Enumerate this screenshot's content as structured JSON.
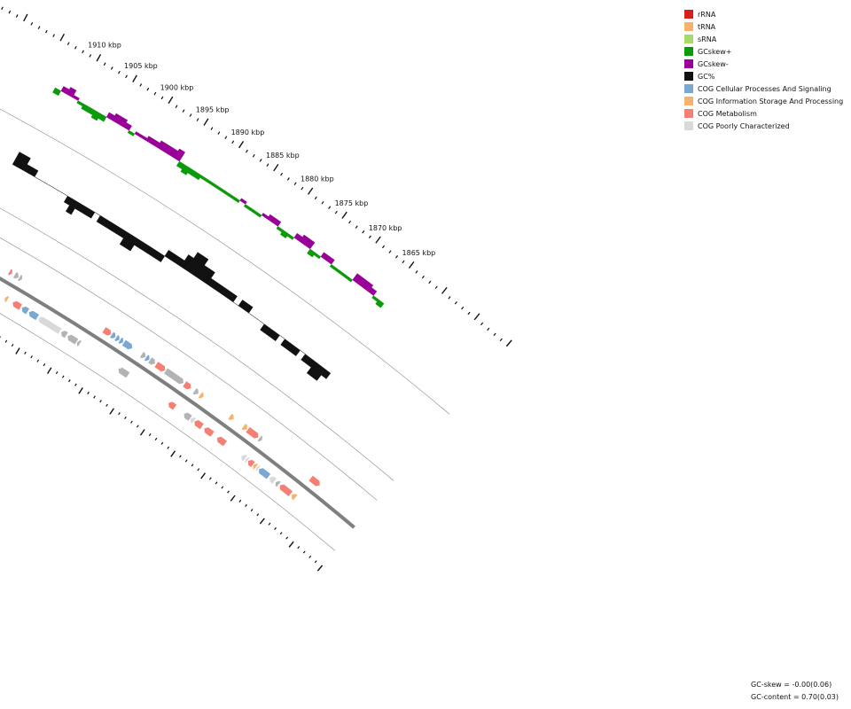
{
  "legend": [
    {
      "label": "rRNA",
      "color": "#d61f1f"
    },
    {
      "label": "tRNA",
      "color": "#f6b26b"
    },
    {
      "label": "sRNA",
      "color": "#a6d96a"
    },
    {
      "label": "GCskew+",
      "color": "#0b9a0b"
    },
    {
      "label": "GCskew-",
      "color": "#990099"
    },
    {
      "label": "GC%",
      "color": "#111111"
    },
    {
      "label": "COG Cellular Processes And Signaling",
      "color": "#7aa8d2"
    },
    {
      "label": "COG Information Storage And Processing",
      "color": "#f6b26b"
    },
    {
      "label": "COG Metabolism",
      "color": "#f47f72"
    },
    {
      "label": "COG Poorly Characterized",
      "color": "#d9d9d9"
    }
  ],
  "stats": {
    "gc_skew": "GC-skew = -0.00(0.06)",
    "gc_content": "GC-content = 0.70(0.03)"
  },
  "colors": {
    "skew_pos": "#0b9a0b",
    "skew_neg": "#990099",
    "gc": "#111111",
    "cog_cellular": "#7aa8d2",
    "cog_info": "#f6b26b",
    "cog_metab": "#f47f72",
    "cog_poor": "#d9d9d9",
    "unassigned": "#b3b3b3",
    "backbone": "#7f7f7f",
    "guide": "#9a9a9a"
  },
  "chart_data": {
    "type": "genome-map",
    "position_unit": "kbp",
    "visible_range_kbp": [
      1866,
      1913
    ],
    "ticks": [
      {
        "kbp": 1910,
        "label": "1910 kbp"
      },
      {
        "kbp": 1905,
        "label": "1905 kbp"
      },
      {
        "kbp": 1900,
        "label": "1900 kbp"
      },
      {
        "kbp": 1895,
        "label": "1895 kbp"
      },
      {
        "kbp": 1890,
        "label": "1890 kbp"
      },
      {
        "kbp": 1885,
        "label": "1885 kbp"
      },
      {
        "kbp": 1880,
        "label": "1880 kbp"
      },
      {
        "kbp": 1875,
        "label": "1875 kbp"
      },
      {
        "kbp": 1870,
        "label": "1870 kbp"
      },
      {
        "kbp": 1865,
        "label": "1865 kbp"
      }
    ],
    "gc_skew": [
      [
        1912.8,
        -0.02
      ],
      [
        1912.0,
        0.02
      ],
      [
        1911.2,
        0.03
      ],
      [
        1910.4,
        0.01
      ],
      [
        1909.6,
        -0.01
      ],
      [
        1908.8,
        -0.02
      ],
      [
        1908.0,
        -0.02
      ],
      [
        1907.2,
        -0.03
      ],
      [
        1906.4,
        -0.02
      ],
      [
        1905.6,
        0.02
      ],
      [
        1904.8,
        0.03
      ],
      [
        1904.0,
        0.03
      ],
      [
        1903.2,
        0.02
      ],
      [
        1902.4,
        -0.01
      ],
      [
        1901.6,
        0.01
      ],
      [
        1900.8,
        0.01
      ],
      [
        1900.0,
        0.02
      ],
      [
        1899.2,
        0.02
      ],
      [
        1898.4,
        0.03
      ],
      [
        1897.6,
        0.03
      ],
      [
        1896.8,
        0.03
      ],
      [
        1896.0,
        0.04
      ],
      [
        1895.2,
        -0.02
      ],
      [
        1894.4,
        -0.03
      ],
      [
        1893.6,
        -0.02
      ],
      [
        1892.8,
        -0.02
      ],
      [
        1892.0,
        -0.01
      ],
      [
        1891.2,
        -0.01
      ],
      [
        1890.4,
        -0.01
      ],
      [
        1889.6,
        -0.01
      ],
      [
        1888.8,
        -0.01
      ],
      [
        1888.0,
        -0.01
      ],
      [
        1887.2,
        -0.01
      ],
      [
        1886.4,
        0.01
      ],
      [
        1885.6,
        -0.01
      ],
      [
        1884.8,
        -0.01
      ],
      [
        1884.0,
        -0.01
      ],
      [
        1883.2,
        0.01
      ],
      [
        1882.4,
        0.02
      ],
      [
        1881.6,
        0.02
      ],
      [
        1880.8,
        -0.01
      ],
      [
        1880.0,
        -0.02
      ],
      [
        1879.2,
        -0.01
      ],
      [
        1878.4,
        0.02
      ],
      [
        1877.6,
        0.03
      ],
      [
        1876.8,
        0.03
      ],
      [
        1876.0,
        -0.02
      ],
      [
        1875.2,
        -0.01
      ],
      [
        1874.4,
        0.02
      ],
      [
        1873.6,
        0.02
      ],
      [
        1872.8,
        -0.01
      ],
      [
        1872.0,
        -0.01
      ],
      [
        1871.2,
        -0.01
      ],
      [
        1870.4,
        -0.01
      ],
      [
        1869.6,
        0.03
      ],
      [
        1868.8,
        0.03
      ],
      [
        1868.0,
        0.03
      ],
      [
        1867.2,
        0.02
      ],
      [
        1866.4,
        -0.01
      ],
      [
        1865.6,
        -0.02
      ]
    ],
    "gc_content": [
      [
        1912.8,
        0.72
      ],
      [
        1912.0,
        0.72
      ],
      [
        1911.2,
        0.71
      ],
      [
        1910.4,
        0.71
      ],
      [
        1909.6,
        0.7
      ],
      [
        1908.8,
        0.7
      ],
      [
        1908.0,
        0.7
      ],
      [
        1907.2,
        0.7
      ],
      [
        1906.4,
        0.7
      ],
      [
        1905.6,
        0.7
      ],
      [
        1904.8,
        0.69
      ],
      [
        1904.0,
        0.68
      ],
      [
        1903.2,
        0.69
      ],
      [
        1902.4,
        0.69
      ],
      [
        1901.6,
        0.69
      ],
      [
        1900.8,
        0.7
      ],
      [
        1900.0,
        0.69
      ],
      [
        1899.2,
        0.69
      ],
      [
        1898.4,
        0.69
      ],
      [
        1897.6,
        0.69
      ],
      [
        1896.8,
        0.69
      ],
      [
        1896.0,
        0.68
      ],
      [
        1895.2,
        0.68
      ],
      [
        1894.4,
        0.69
      ],
      [
        1893.6,
        0.69
      ],
      [
        1892.8,
        0.69
      ],
      [
        1892.0,
        0.69
      ],
      [
        1891.2,
        0.69
      ],
      [
        1890.4,
        0.71
      ],
      [
        1889.6,
        0.71
      ],
      [
        1888.8,
        0.71
      ],
      [
        1888.0,
        0.72
      ],
      [
        1887.2,
        0.73
      ],
      [
        1886.4,
        0.73
      ],
      [
        1885.6,
        0.72
      ],
      [
        1884.8,
        0.72
      ],
      [
        1884.0,
        0.71
      ],
      [
        1883.2,
        0.71
      ],
      [
        1882.4,
        0.71
      ],
      [
        1881.6,
        0.71
      ],
      [
        1880.8,
        0.71
      ],
      [
        1880.0,
        0.7
      ],
      [
        1879.2,
        0.71
      ],
      [
        1878.4,
        0.71
      ],
      [
        1877.6,
        0.7
      ],
      [
        1876.8,
        0.7
      ],
      [
        1876.0,
        0.7
      ],
      [
        1875.2,
        0.69
      ],
      [
        1874.4,
        0.69
      ],
      [
        1873.6,
        0.69
      ],
      [
        1872.8,
        0.7
      ],
      [
        1872.0,
        0.69
      ],
      [
        1871.2,
        0.69
      ],
      [
        1870.4,
        0.69
      ],
      [
        1869.6,
        0.7
      ],
      [
        1868.8,
        0.69
      ],
      [
        1868.0,
        0.69
      ],
      [
        1867.2,
        0.68
      ],
      [
        1866.4,
        0.68
      ],
      [
        1865.6,
        0.69
      ]
    ],
    "genes": [
      {
        "start": 1912.3,
        "end": 1911.3,
        "strand": -1,
        "cog": "metabolism"
      },
      {
        "start": 1911.1,
        "end": 1910.0,
        "strand": -1,
        "cog": "metabolism"
      },
      {
        "start": 1909.8,
        "end": 1908.9,
        "strand": -1,
        "cog": "metabolism"
      },
      {
        "start": 1908.7,
        "end": 1907.4,
        "strand": -1,
        "cog": "metabolism"
      },
      {
        "start": 1907.2,
        "end": 1906.6,
        "strand": -1,
        "cog": "unassigned"
      },
      {
        "start": 1906.3,
        "end": 1905.9,
        "strand": 1,
        "cog": "metabolism"
      },
      {
        "start": 1905.5,
        "end": 1904.9,
        "strand": 1,
        "cog": "unassigned"
      },
      {
        "start": 1904.8,
        "end": 1904.4,
        "strand": 1,
        "cog": "unassigned"
      },
      {
        "start": 1905.1,
        "end": 1904.7,
        "strand": -1,
        "cog": "info"
      },
      {
        "start": 1903.9,
        "end": 1902.7,
        "strand": -1,
        "cog": "metabolism"
      },
      {
        "start": 1902.5,
        "end": 1901.6,
        "strand": -1,
        "cog": "cellular"
      },
      {
        "start": 1901.4,
        "end": 1900.1,
        "strand": -1,
        "cog": "cellular"
      },
      {
        "start": 1899.9,
        "end": 1896.6,
        "strand": -1,
        "cog": "poor"
      },
      {
        "start": 1896.4,
        "end": 1895.6,
        "strand": -1,
        "cog": "unassigned"
      },
      {
        "start": 1895.4,
        "end": 1894.0,
        "strand": -1,
        "cog": "unassigned"
      },
      {
        "start": 1893.9,
        "end": 1893.5,
        "strand": -1,
        "cog": "unassigned"
      },
      {
        "start": 1891.8,
        "end": 1890.7,
        "strand": 1,
        "cog": "metabolism"
      },
      {
        "start": 1890.6,
        "end": 1890.0,
        "strand": 1,
        "cog": "cellular"
      },
      {
        "start": 1889.9,
        "end": 1889.4,
        "strand": 1,
        "cog": "cellular"
      },
      {
        "start": 1889.3,
        "end": 1888.8,
        "strand": 1,
        "cog": "cellular"
      },
      {
        "start": 1888.7,
        "end": 1887.4,
        "strand": 1,
        "cog": "cellular"
      },
      {
        "start": 1887.4,
        "end": 1885.9,
        "strand": -1,
        "cog": "unassigned"
      },
      {
        "start": 1885.9,
        "end": 1885.3,
        "strand": 1,
        "cog": "unassigned"
      },
      {
        "start": 1885.2,
        "end": 1884.7,
        "strand": 1,
        "cog": "cellular"
      },
      {
        "start": 1884.6,
        "end": 1883.8,
        "strand": 1,
        "cog": "unassigned"
      },
      {
        "start": 1883.6,
        "end": 1882.2,
        "strand": 1,
        "cog": "metabolism"
      },
      {
        "start": 1882.1,
        "end": 1879.3,
        "strand": 1,
        "cog": "unassigned"
      },
      {
        "start": 1879.1,
        "end": 1878.1,
        "strand": 1,
        "cog": "metabolism"
      },
      {
        "start": 1879.4,
        "end": 1878.4,
        "strand": -1,
        "cog": "metabolism"
      },
      {
        "start": 1877.5,
        "end": 1876.9,
        "strand": 1,
        "cog": "unassigned"
      },
      {
        "start": 1876.6,
        "end": 1876.1,
        "strand": 1,
        "cog": "info"
      },
      {
        "start": 1876.9,
        "end": 1875.9,
        "strand": -1,
        "cog": "unassigned"
      },
      {
        "start": 1875.8,
        "end": 1875.3,
        "strand": -1,
        "cog": "poor"
      },
      {
        "start": 1875.2,
        "end": 1874.0,
        "strand": -1,
        "cog": "metabolism"
      },
      {
        "start": 1873.6,
        "end": 1872.3,
        "strand": -1,
        "cog": "metabolism"
      },
      {
        "start": 1871.8,
        "end": 1871.2,
        "strand": 1,
        "cog": "info"
      },
      {
        "start": 1871.5,
        "end": 1870.2,
        "strand": -1,
        "cog": "metabolism"
      },
      {
        "start": 1869.6,
        "end": 1869.0,
        "strand": 1,
        "cog": "info"
      },
      {
        "start": 1868.9,
        "end": 1867.2,
        "strand": 1,
        "cog": "metabolism"
      },
      {
        "start": 1867.0,
        "end": 1866.6,
        "strand": 1,
        "cog": "unassigned"
      },
      {
        "start": 1867.5,
        "end": 1866.9,
        "strand": -1,
        "cog": "poor"
      },
      {
        "start": 1866.8,
        "end": 1866.5,
        "strand": -1,
        "cog": "poor"
      },
      {
        "start": 1866.4,
        "end": 1865.6,
        "strand": -1,
        "cog": "metabolism"
      },
      {
        "start": 1865.5,
        "end": 1865.1,
        "strand": -1,
        "cog": "info"
      },
      {
        "start": 1865.0,
        "end": 1864.7,
        "strand": -1,
        "cog": "poor"
      },
      {
        "start": 1864.6,
        "end": 1863.0,
        "strand": -1,
        "cog": "cellular"
      },
      {
        "start": 1862.8,
        "end": 1862.0,
        "strand": -1,
        "cog": "poor"
      },
      {
        "start": 1861.8,
        "end": 1861.3,
        "strand": -1,
        "cog": "unassigned"
      },
      {
        "start": 1861.1,
        "end": 1859.3,
        "strand": -1,
        "cog": "metabolism"
      },
      {
        "start": 1859.1,
        "end": 1858.5,
        "strand": -1,
        "cog": "info"
      },
      {
        "start": 1858.5,
        "end": 1857.0,
        "strand": 1,
        "cog": "metabolism"
      }
    ]
  }
}
